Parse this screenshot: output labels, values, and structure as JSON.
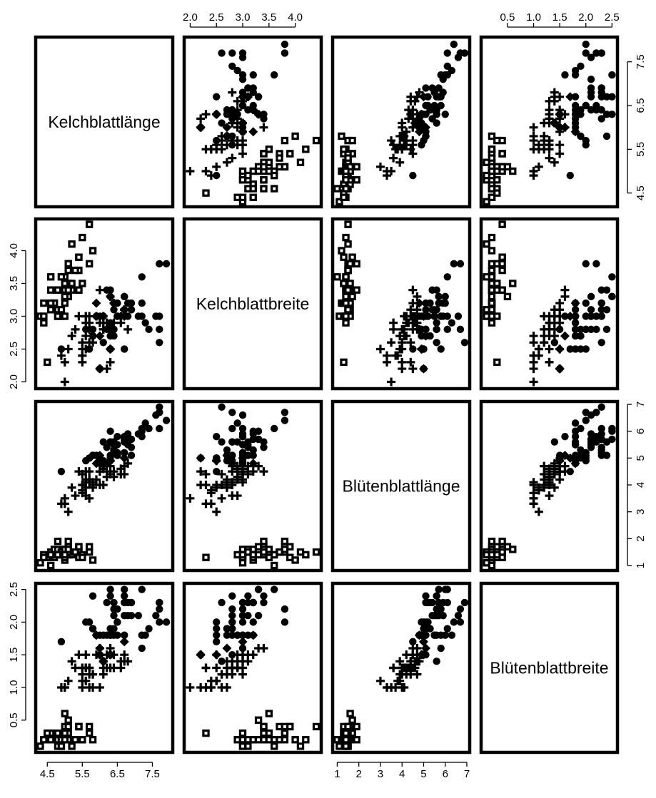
{
  "chart_data": {
    "type": "scatter",
    "variables": [
      {
        "name": "Kelchblattlänge",
        "range": [
          4.25,
          8.0
        ],
        "ticks": [
          4.5,
          5.5,
          6.5,
          7.5
        ]
      },
      {
        "name": "Kelchblattbreite",
        "range": [
          1.94,
          4.44
        ],
        "ticks": [
          2.0,
          2.5,
          3.0,
          3.5,
          4.0
        ]
      },
      {
        "name": "Blütenblattlänge",
        "range": [
          0.92,
          7.0
        ],
        "ticks": [
          1,
          2,
          3,
          4,
          5,
          6,
          7
        ]
      },
      {
        "name": "Blütenblattbreite",
        "range": [
          0.05,
          2.55
        ],
        "ticks": [
          0.5,
          1.0,
          1.5,
          2.0,
          2.5
        ]
      }
    ],
    "tick_labels": [
      [
        "4.5",
        "5.5",
        "6.5",
        "7.5"
      ],
      [
        "2.0",
        "2.5",
        "3.0",
        "3.5",
        "4.0"
      ],
      [
        "1",
        "2",
        "3",
        "4",
        "5",
        "6",
        "7"
      ],
      [
        "0.5",
        "1.0",
        "1.5",
        "2.0",
        "2.5"
      ]
    ],
    "axes_layout": {
      "top": [
        1,
        3
      ],
      "right": [
        0,
        2
      ],
      "bottom": [
        0,
        2
      ],
      "left": [
        1,
        3
      ]
    },
    "series": [
      {
        "marker": "square",
        "points": [
          [
            5.1,
            3.5,
            1.4,
            0.2
          ],
          [
            4.9,
            3.0,
            1.4,
            0.2
          ],
          [
            4.7,
            3.2,
            1.3,
            0.2
          ],
          [
            4.6,
            3.1,
            1.5,
            0.2
          ],
          [
            5.0,
            3.6,
            1.4,
            0.2
          ],
          [
            5.4,
            3.9,
            1.7,
            0.4
          ],
          [
            4.6,
            3.4,
            1.4,
            0.3
          ],
          [
            5.0,
            3.4,
            1.5,
            0.2
          ],
          [
            4.4,
            2.9,
            1.4,
            0.2
          ],
          [
            4.9,
            3.1,
            1.5,
            0.1
          ],
          [
            5.4,
            3.7,
            1.5,
            0.2
          ],
          [
            4.8,
            3.4,
            1.6,
            0.2
          ],
          [
            4.8,
            3.0,
            1.4,
            0.1
          ],
          [
            4.3,
            3.0,
            1.1,
            0.1
          ],
          [
            5.8,
            4.0,
            1.2,
            0.2
          ],
          [
            5.7,
            4.4,
            1.5,
            0.4
          ],
          [
            5.4,
            3.9,
            1.3,
            0.4
          ],
          [
            5.1,
            3.5,
            1.4,
            0.3
          ],
          [
            5.7,
            3.8,
            1.7,
            0.3
          ],
          [
            5.1,
            3.8,
            1.5,
            0.3
          ],
          [
            5.4,
            3.4,
            1.7,
            0.2
          ],
          [
            5.1,
            3.7,
            1.5,
            0.4
          ],
          [
            4.6,
            3.6,
            1.0,
            0.2
          ],
          [
            5.1,
            3.3,
            1.7,
            0.5
          ],
          [
            4.8,
            3.4,
            1.9,
            0.2
          ],
          [
            5.0,
            3.0,
            1.6,
            0.2
          ],
          [
            5.0,
            3.4,
            1.6,
            0.4
          ],
          [
            5.2,
            3.5,
            1.5,
            0.2
          ],
          [
            5.2,
            3.4,
            1.4,
            0.2
          ],
          [
            4.7,
            3.2,
            1.6,
            0.2
          ],
          [
            4.8,
            3.1,
            1.6,
            0.2
          ],
          [
            5.4,
            3.4,
            1.5,
            0.4
          ],
          [
            5.2,
            4.1,
            1.5,
            0.1
          ],
          [
            5.5,
            4.2,
            1.4,
            0.2
          ],
          [
            4.9,
            3.1,
            1.5,
            0.2
          ],
          [
            5.0,
            3.2,
            1.2,
            0.2
          ],
          [
            5.5,
            3.5,
            1.3,
            0.2
          ],
          [
            4.9,
            3.6,
            1.4,
            0.1
          ],
          [
            4.4,
            3.0,
            1.3,
            0.2
          ],
          [
            5.1,
            3.4,
            1.5,
            0.2
          ],
          [
            5.0,
            3.5,
            1.3,
            0.3
          ],
          [
            4.5,
            2.3,
            1.3,
            0.3
          ],
          [
            4.4,
            3.2,
            1.3,
            0.2
          ],
          [
            5.0,
            3.5,
            1.6,
            0.6
          ],
          [
            5.1,
            3.8,
            1.9,
            0.4
          ],
          [
            4.8,
            3.0,
            1.4,
            0.3
          ],
          [
            5.1,
            3.8,
            1.6,
            0.2
          ],
          [
            4.6,
            3.2,
            1.4,
            0.2
          ],
          [
            5.3,
            3.7,
            1.5,
            0.2
          ],
          [
            5.0,
            3.3,
            1.4,
            0.2
          ]
        ]
      },
      {
        "marker": "plus",
        "points": [
          [
            6.4,
            3.2,
            4.5,
            1.5
          ],
          [
            5.5,
            2.3,
            4.0,
            1.3
          ],
          [
            5.7,
            2.8,
            4.5,
            1.3
          ],
          [
            6.3,
            3.3,
            4.7,
            1.6
          ],
          [
            4.9,
            2.4,
            3.3,
            1.0
          ],
          [
            6.6,
            2.9,
            4.6,
            1.3
          ],
          [
            5.2,
            2.7,
            3.9,
            1.4
          ],
          [
            5.0,
            2.0,
            3.5,
            1.0
          ],
          [
            5.9,
            3.0,
            4.2,
            1.5
          ],
          [
            6.0,
            2.2,
            4.0,
            1.0
          ],
          [
            6.1,
            2.9,
            4.7,
            1.4
          ],
          [
            5.6,
            2.9,
            3.6,
            1.3
          ],
          [
            6.7,
            3.1,
            4.4,
            1.4
          ],
          [
            5.6,
            3.0,
            4.5,
            1.5
          ],
          [
            5.8,
            2.7,
            4.1,
            1.0
          ],
          [
            6.2,
            2.2,
            4.5,
            1.5
          ],
          [
            5.6,
            2.5,
            3.9,
            1.1
          ],
          [
            6.1,
            2.8,
            4.0,
            1.3
          ],
          [
            6.3,
            2.5,
            4.9,
            1.5
          ],
          [
            6.1,
            2.8,
            4.7,
            1.2
          ],
          [
            6.4,
            2.9,
            4.3,
            1.3
          ],
          [
            6.6,
            3.0,
            4.4,
            1.4
          ],
          [
            6.8,
            2.8,
            4.8,
            1.4
          ],
          [
            6.0,
            2.9,
            4.5,
            1.5
          ],
          [
            5.7,
            2.6,
            3.5,
            1.0
          ],
          [
            5.5,
            2.4,
            3.8,
            1.1
          ],
          [
            5.5,
            2.4,
            3.7,
            1.0
          ],
          [
            5.8,
            2.7,
            3.9,
            1.2
          ],
          [
            5.4,
            3.0,
            4.5,
            1.5
          ],
          [
            6.0,
            3.4,
            4.5,
            1.6
          ],
          [
            6.7,
            3.1,
            4.7,
            1.5
          ],
          [
            6.3,
            2.3,
            4.4,
            1.3
          ],
          [
            5.6,
            3.0,
            4.1,
            1.3
          ],
          [
            5.5,
            2.5,
            4.0,
            1.3
          ],
          [
            5.5,
            2.6,
            4.4,
            1.2
          ],
          [
            6.1,
            3.0,
            4.6,
            1.4
          ],
          [
            5.8,
            2.6,
            4.0,
            1.2
          ],
          [
            5.0,
            2.3,
            3.3,
            1.0
          ],
          [
            5.6,
            2.7,
            4.2,
            1.3
          ],
          [
            5.7,
            3.0,
            4.2,
            1.2
          ],
          [
            5.7,
            2.9,
            4.2,
            1.3
          ],
          [
            6.2,
            2.9,
            4.3,
            1.3
          ],
          [
            5.1,
            2.5,
            3.0,
            1.1
          ],
          [
            5.7,
            2.8,
            4.1,
            1.3
          ],
          [
            5.3,
            2.8,
            3.6,
            1.3
          ]
        ]
      },
      {
        "marker": "diamond",
        "points": [
          [
            5.9,
            3.2,
            4.8,
            1.8
          ],
          [
            6.0,
            2.7,
            5.1,
            1.6
          ],
          [
            6.3,
            2.5,
            4.9,
            1.5
          ],
          [
            6.7,
            3.0,
            5.0,
            1.7
          ],
          [
            6.0,
            2.2,
            5.0,
            1.5
          ]
        ]
      },
      {
        "marker": "circle",
        "points": [
          [
            6.3,
            3.3,
            6.0,
            2.5
          ],
          [
            5.8,
            2.7,
            5.1,
            1.9
          ],
          [
            7.1,
            3.0,
            5.9,
            2.1
          ],
          [
            6.3,
            2.9,
            5.6,
            1.8
          ],
          [
            6.5,
            3.0,
            5.8,
            2.2
          ],
          [
            7.6,
            3.0,
            6.6,
            2.1
          ],
          [
            4.9,
            2.5,
            4.5,
            1.7
          ],
          [
            7.3,
            2.9,
            6.3,
            1.8
          ],
          [
            6.7,
            2.5,
            5.8,
            1.8
          ],
          [
            7.2,
            3.6,
            6.1,
            2.5
          ],
          [
            6.5,
            3.2,
            5.1,
            2.0
          ],
          [
            6.4,
            2.7,
            5.3,
            1.9
          ],
          [
            6.8,
            3.0,
            5.5,
            2.1
          ],
          [
            5.7,
            2.5,
            5.0,
            2.0
          ],
          [
            5.8,
            2.8,
            5.1,
            2.4
          ],
          [
            6.4,
            3.2,
            5.3,
            2.3
          ],
          [
            6.5,
            3.0,
            5.5,
            1.8
          ],
          [
            7.7,
            3.8,
            6.7,
            2.2
          ],
          [
            7.7,
            2.6,
            6.9,
            2.3
          ],
          [
            6.0,
            2.2,
            5.0,
            1.5
          ],
          [
            6.9,
            3.2,
            5.7,
            2.3
          ],
          [
            5.6,
            2.8,
            4.9,
            2.0
          ],
          [
            7.7,
            2.8,
            6.7,
            2.0
          ],
          [
            6.3,
            2.7,
            4.9,
            1.8
          ],
          [
            6.7,
            3.3,
            5.7,
            2.1
          ],
          [
            7.2,
            3.2,
            6.0,
            1.8
          ],
          [
            6.2,
            2.8,
            4.8,
            1.8
          ],
          [
            6.1,
            3.0,
            4.9,
            1.8
          ],
          [
            6.4,
            2.8,
            5.6,
            2.1
          ],
          [
            7.2,
            3.0,
            5.8,
            1.6
          ],
          [
            7.4,
            2.8,
            6.1,
            1.9
          ],
          [
            7.9,
            3.8,
            6.4,
            2.0
          ],
          [
            6.4,
            2.8,
            5.6,
            2.2
          ],
          [
            6.3,
            2.8,
            5.1,
            1.5
          ],
          [
            6.1,
            2.6,
            5.6,
            1.4
          ],
          [
            7.7,
            3.0,
            6.1,
            2.3
          ],
          [
            6.3,
            3.4,
            5.6,
            2.4
          ],
          [
            6.4,
            3.1,
            5.5,
            1.8
          ],
          [
            6.0,
            3.0,
            4.8,
            1.8
          ],
          [
            6.9,
            3.1,
            5.4,
            2.1
          ],
          [
            6.7,
            3.1,
            5.6,
            2.4
          ],
          [
            6.9,
            3.1,
            5.1,
            2.3
          ],
          [
            5.8,
            2.7,
            5.1,
            1.9
          ],
          [
            6.8,
            3.2,
            5.9,
            2.3
          ],
          [
            6.7,
            3.3,
            5.7,
            2.5
          ],
          [
            6.7,
            3.0,
            5.2,
            2.3
          ],
          [
            6.3,
            2.5,
            5.0,
            1.9
          ],
          [
            6.5,
            3.0,
            5.2,
            2.0
          ],
          [
            6.2,
            3.4,
            5.4,
            2.3
          ],
          [
            5.9,
            3.0,
            5.1,
            1.8
          ]
        ]
      }
    ]
  }
}
